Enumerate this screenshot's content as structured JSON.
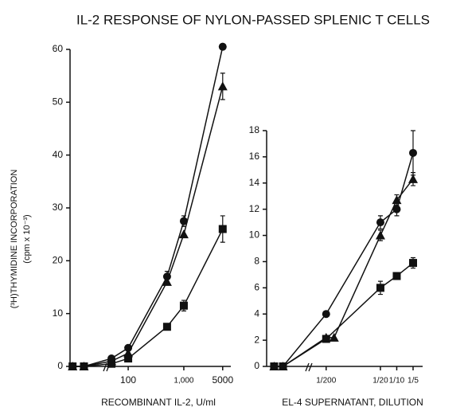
{
  "title": "IL-2 RESPONSE OF NYLON-PASSED SPLENIC T CELLS",
  "ylabel": "(³H)THYMIDINE INCORPORATION",
  "ylabel_unit": "(cpm x 10⁻³)",
  "chart_data": [
    {
      "type": "line",
      "xlabel": "RECOMBINANT IL-2, U/ml",
      "xscale": "log",
      "xlim": [
        9,
        7000
      ],
      "xticks": [
        100,
        {
          "value": 1000,
          "label": "1,000"
        },
        5000
      ],
      "ylim": [
        0,
        60
      ],
      "yticks": [
        0,
        10,
        20,
        30,
        40,
        50,
        60
      ],
      "series": [
        {
          "marker": "circle",
          "color": "#111111",
          "x": [
            10,
            16,
            50,
            100,
            500,
            1000,
            5000
          ],
          "values": [
            0,
            0,
            1.5,
            3.5,
            17,
            27.5,
            60.5
          ],
          "errors": [
            null,
            null,
            null,
            null,
            1,
            1,
            null
          ]
        },
        {
          "marker": "triangle",
          "color": "#111111",
          "x": [
            10,
            16,
            50,
            100,
            500,
            1000,
            5000
          ],
          "values": [
            0,
            0,
            1,
            2.5,
            16,
            25,
            53
          ],
          "errors": [
            null,
            null,
            null,
            null,
            null,
            null,
            2.5
          ]
        },
        {
          "marker": "square",
          "color": "#111111",
          "x": [
            10,
            16,
            50,
            100,
            500,
            1000,
            5000
          ],
          "values": [
            0,
            0,
            0.5,
            1.5,
            7.5,
            11.5,
            26
          ],
          "errors": [
            null,
            null,
            null,
            null,
            null,
            1,
            2.5
          ]
        }
      ]
    },
    {
      "type": "line",
      "xlabel": "EL-4 SUPERNATANT, DILUTION",
      "xscale": "log",
      "xlim": [
        0.0004,
        0.3
      ],
      "xticks": [
        {
          "value": 0.005,
          "label": "1/200"
        },
        {
          "value": 0.05,
          "label": "1/20"
        },
        {
          "value": 0.1,
          "label": "1/10"
        },
        {
          "value": 0.2,
          "label": "1/5"
        }
      ],
      "ylim": [
        0,
        18
      ],
      "yticks": [
        0,
        2,
        4,
        6,
        8,
        10,
        12,
        14,
        16,
        18
      ],
      "series": [
        {
          "marker": "circle",
          "color": "#111111",
          "x": [
            0.00055,
            0.0008,
            0.005,
            0.05,
            0.1,
            0.2
          ],
          "values": [
            0,
            0,
            4,
            11,
            12,
            16.3
          ],
          "errors": [
            null,
            null,
            null,
            0.5,
            0.5,
            1.7
          ]
        },
        {
          "marker": "triangle",
          "color": "#111111",
          "x": [
            0.00055,
            0.0008,
            0.005,
            0.007,
            0.05,
            0.1,
            0.2
          ],
          "values": [
            0,
            0,
            2.2,
            2.2,
            10,
            12.7,
            14.3
          ],
          "errors": [
            null,
            null,
            null,
            null,
            0.4,
            0.4,
            0.5
          ]
        },
        {
          "marker": "square",
          "color": "#111111",
          "x": [
            0.00055,
            0.0008,
            0.005,
            0.05,
            0.1,
            0.2
          ],
          "values": [
            0,
            0,
            2.1,
            6,
            6.9,
            7.9
          ],
          "errors": [
            null,
            null,
            null,
            0.5,
            null,
            0.4
          ]
        }
      ]
    }
  ]
}
